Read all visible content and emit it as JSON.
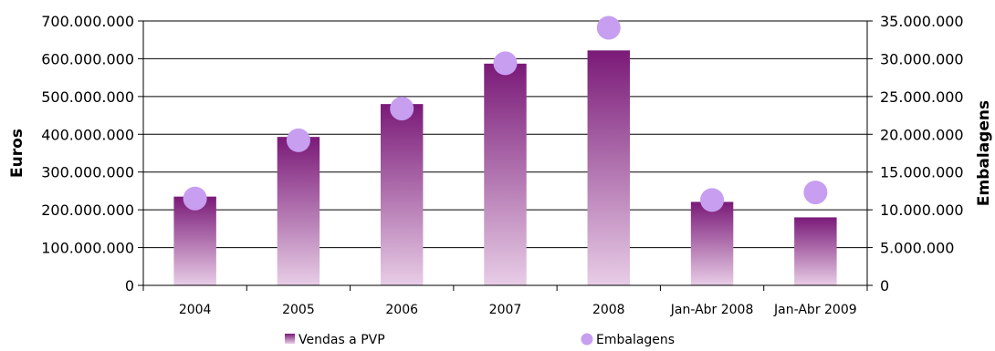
{
  "chart_data": {
    "type": "bar",
    "categories": [
      "2004",
      "2005",
      "2006",
      "2007",
      "2008",
      "Jan-Abr 2008",
      "Jan-Abr 2009"
    ],
    "series": [
      {
        "name": "Vendas a PVP",
        "type": "bar",
        "axis": "left",
        "values": [
          235000000,
          393000000,
          480000000,
          587000000,
          622000000,
          221000000,
          180000000
        ]
      },
      {
        "name": "Embalagens",
        "type": "scatter",
        "axis": "right",
        "values": [
          11500000,
          19200000,
          23400000,
          29400000,
          34100000,
          11300000,
          12300000
        ]
      }
    ],
    "ylabel": "Euros",
    "y2label": "Embalagens",
    "ylim": [
      0,
      700000000
    ],
    "y2lim": [
      0,
      35000000
    ],
    "yticks": [
      "0",
      "100.000.000",
      "200.000.000",
      "300.000.000",
      "400.000.000",
      "500.000.000",
      "600.000.000",
      "700.000.000"
    ],
    "y2ticks": [
      "0",
      "5.000.000",
      "10.000.000",
      "15.000.000",
      "20.000.000",
      "25.000.000",
      "30.000.000",
      "35.000.000"
    ],
    "grid": true,
    "legend": "bottom",
    "colors": {
      "bar_top": "#7a1a78",
      "bar_bottom": "#e8cde6",
      "marker": "#c79ef0",
      "grid": "#000000"
    }
  }
}
